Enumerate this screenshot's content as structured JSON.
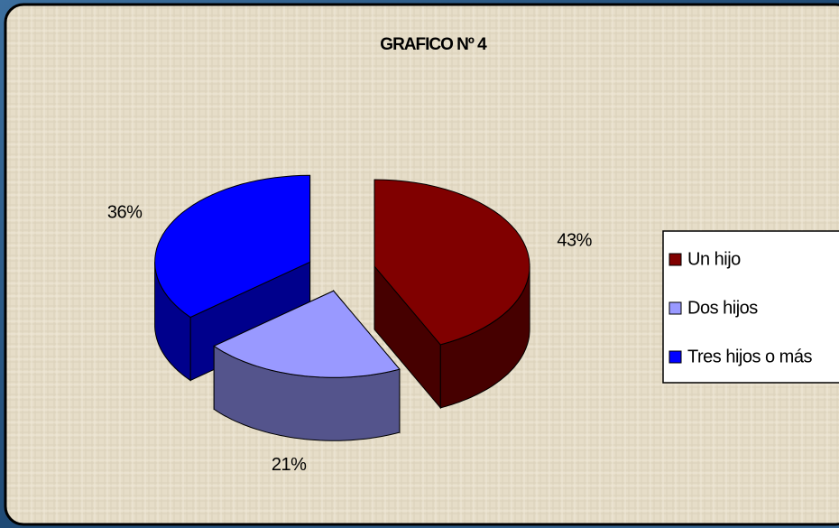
{
  "chart_data": {
    "type": "pie",
    "title": "GRAFICO Nº 4",
    "categories": [
      "Un hijo",
      "Dos hijos",
      "Tres hijos o más"
    ],
    "values": [
      43,
      21,
      36
    ],
    "value_labels": [
      "43%",
      "21%",
      "36%"
    ],
    "colors": [
      "#800000",
      "#9999ff",
      "#0000ff"
    ],
    "legend": "right"
  }
}
